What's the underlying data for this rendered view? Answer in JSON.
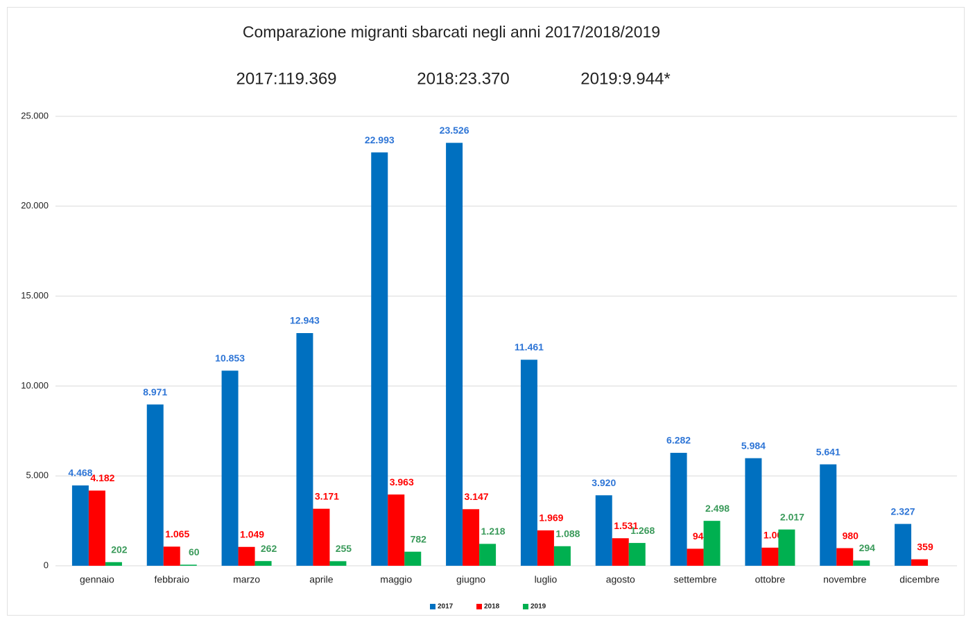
{
  "chart_data": {
    "type": "bar",
    "title": "Comparazione migranti sbarcati negli anni 2017/2018/2019",
    "subtitles": [
      "2017:119.369",
      "2018:23.370",
      "2019:9.944*"
    ],
    "categories": [
      "gennaio",
      "febbraio",
      "marzo",
      "aprile",
      "maggio",
      "giugno",
      "luglio",
      "agosto",
      "settembre",
      "ottobre",
      "novembre",
      "dicembre"
    ],
    "series": [
      {
        "name": "2017",
        "color": "#0070c0",
        "label_color": "#2e75d6",
        "values": [
          4468,
          8971,
          10853,
          12943,
          22993,
          23526,
          11461,
          3920,
          6282,
          5984,
          5641,
          2327
        ],
        "value_labels": [
          "4.468",
          "8.971",
          "10.853",
          "12.943",
          "22.993",
          "23.526",
          "11.461",
          "3.920",
          "6.282",
          "5.984",
          "5.641",
          "2.327"
        ]
      },
      {
        "name": "2018",
        "color": "#ff0000",
        "label_color": "#ff0000",
        "values": [
          4182,
          1065,
          1049,
          3171,
          3963,
          3147,
          1969,
          1531,
          947,
          1007,
          980,
          359
        ],
        "value_labels": [
          "4.182",
          "1.065",
          "1.049",
          "3.171",
          "3.963",
          "3.147",
          "1.969",
          "1.531",
          "947",
          "1.007",
          "980",
          "359"
        ]
      },
      {
        "name": "2019",
        "color": "#00b050",
        "label_color": "#3a9a5a",
        "values": [
          202,
          60,
          262,
          255,
          782,
          1218,
          1088,
          1268,
          2498,
          2017,
          294,
          null
        ],
        "value_labels": [
          "202",
          "60",
          "262",
          "255",
          "782",
          "1.218",
          "1.088",
          "1.268",
          "2.498",
          "2.017",
          "294",
          null
        ]
      }
    ],
    "ylim": [
      0,
      25000
    ],
    "yticks": [
      0,
      {
        "value": 5000,
        "label": "5.000"
      },
      {
        "value": 10000,
        "label": "10.000"
      },
      {
        "value": 15000,
        "label": "15.000"
      },
      {
        "value": 20000,
        "label": "20.000"
      },
      {
        "value": 25000,
        "label": "25.000"
      }
    ],
    "grid": true,
    "legend": "bottom"
  }
}
